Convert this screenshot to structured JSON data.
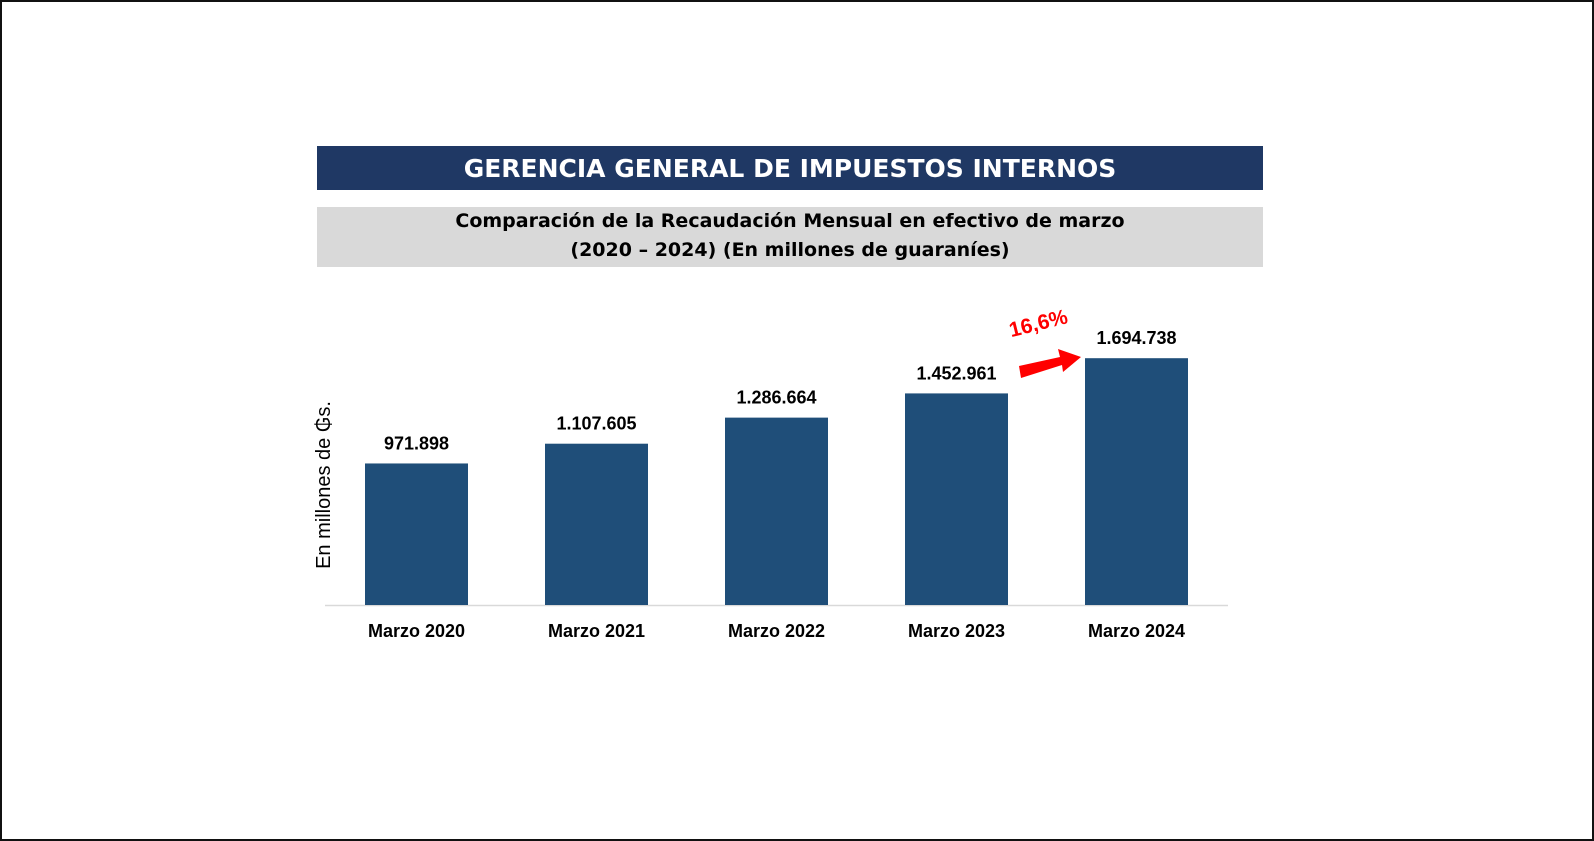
{
  "header": {
    "title": "GERENCIA GENERAL DE IMPUESTOS INTERNOS",
    "subtitle_line1": "Comparación de la Recaudación Mensual en efectivo de marzo",
    "subtitle_line2": "(2020 – 2024) (En millones de guaraníes)"
  },
  "colors": {
    "header_bg": "#1f3864",
    "subtitle_bg": "#d9d9d9",
    "bar": "#1f4e79",
    "annotation": "#ff0000"
  },
  "chart_data": {
    "type": "bar",
    "title": "Comparación de la Recaudación Mensual en efectivo de marzo (2020 – 2024) (En millones de guaraníes)",
    "categories": [
      "Marzo 2020",
      "Marzo 2021",
      "Marzo 2022",
      "Marzo 2023",
      "Marzo 2024"
    ],
    "values": [
      971898,
      1107605,
      1286664,
      1452961,
      1694738
    ],
    "value_labels": [
      "971.898",
      "1.107.605",
      "1.286.664",
      "1.452.961",
      "1.694.738"
    ],
    "xlabel": "",
    "ylabel": "En millones de ₲s.",
    "ylim": [
      0,
      2060000
    ],
    "grid": false,
    "annotation": {
      "text": "16,6%",
      "from": "Marzo 2023",
      "to": "Marzo 2024",
      "arrow": true
    }
  }
}
